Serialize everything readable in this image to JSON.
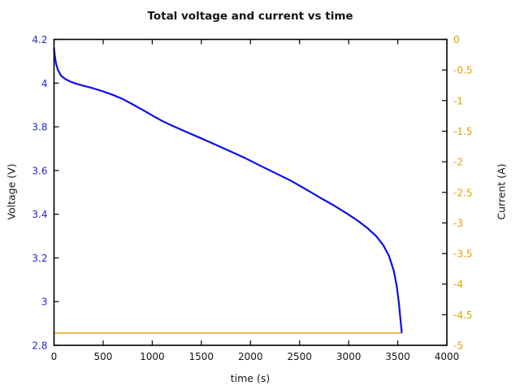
{
  "chart_data": {
    "type": "line",
    "title": "Total voltage and current vs time",
    "xlabel": "time (s)",
    "ylabel_left": "Voltage (V)",
    "ylabel_right": "Current (A)",
    "grid": false,
    "legend": "none",
    "xlim": [
      0,
      4000
    ],
    "ylim_left": [
      2.8,
      4.2
    ],
    "ylim_right": [
      -5,
      0
    ],
    "x_ticks": {
      "values": [
        0,
        500,
        1000,
        1500,
        2000,
        2500,
        3000,
        3500,
        4000
      ],
      "labels": [
        "0",
        "500",
        "1000",
        "1500",
        "2000",
        "2500",
        "3000",
        "3500",
        "4000"
      ],
      "color": "#141414"
    },
    "left_ticks": {
      "values": [
        4.2,
        4.0,
        3.8,
        3.6,
        3.4,
        3.2,
        3.0,
        2.8
      ],
      "labels": [
        "4.2",
        "4",
        "3.8",
        "3.6",
        "3.4",
        "3.2",
        "3",
        "2.8"
      ],
      "color": "#2525cf"
    },
    "right_ticks": {
      "values": [
        0,
        -0.5,
        -1,
        -1.5,
        -2,
        -2.5,
        -3,
        -3.5,
        -4,
        -4.5,
        -5
      ],
      "labels": [
        "0",
        "-0.5",
        "-1",
        "-1.5",
        "-2",
        "-2.5",
        "-3",
        "-3.5",
        "-4",
        "-4.5",
        "-5"
      ],
      "color": "#e69f00"
    },
    "series": [
      {
        "name": "current",
        "axis": "right",
        "color": "#e69f00",
        "width": 1.4,
        "x": [
          0,
          3540
        ],
        "y": [
          -4.8,
          -4.8
        ]
      },
      {
        "name": "voltage",
        "axis": "left",
        "color": "#0d0de8",
        "width": 2.2,
        "x": [
          0,
          8,
          20,
          40,
          70,
          110,
          160,
          220,
          300,
          400,
          500,
          600,
          700,
          800,
          900,
          1000,
          1100,
          1200,
          1350,
          1500,
          1650,
          1800,
          1950,
          2100,
          2250,
          2400,
          2550,
          2700,
          2850,
          3000,
          3100,
          3200,
          3280,
          3350,
          3410,
          3460,
          3490,
          3510,
          3525,
          3540
        ],
        "y": [
          4.16,
          4.125,
          4.09,
          4.06,
          4.035,
          4.02,
          4.008,
          3.998,
          3.988,
          3.976,
          3.962,
          3.946,
          3.927,
          3.903,
          3.878,
          3.852,
          3.827,
          3.806,
          3.776,
          3.747,
          3.717,
          3.687,
          3.656,
          3.622,
          3.589,
          3.556,
          3.518,
          3.478,
          3.44,
          3.398,
          3.368,
          3.333,
          3.3,
          3.26,
          3.21,
          3.14,
          3.07,
          3.0,
          2.93,
          2.86
        ]
      }
    ],
    "frame_color": "#000000"
  }
}
